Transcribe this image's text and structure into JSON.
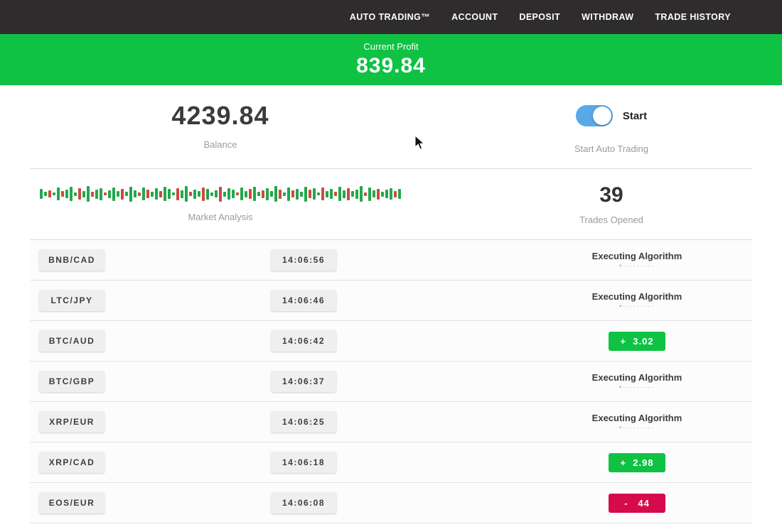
{
  "nav": {
    "items": [
      "AUTO TRADING™",
      "ACCOUNT",
      "DEPOSIT",
      "WITHDRAW",
      "TRADE HISTORY"
    ]
  },
  "banner": {
    "label": "Current Profit",
    "value": "839.84"
  },
  "account": {
    "balance": "4239.84",
    "balance_label": "Balance",
    "toggle_label": "Start",
    "toggle_caption": "Start Auto Trading",
    "toggle_state": "on"
  },
  "market": {
    "label": "Market Analysis",
    "trades_opened": "39",
    "trades_label": "Trades Opened",
    "bars": [
      [
        14,
        "g"
      ],
      [
        6,
        "g"
      ],
      [
        10,
        "r"
      ],
      [
        4,
        "g"
      ],
      [
        18,
        "g"
      ],
      [
        8,
        "r"
      ],
      [
        12,
        "g"
      ],
      [
        20,
        "g"
      ],
      [
        5,
        "g"
      ],
      [
        16,
        "r"
      ],
      [
        9,
        "g"
      ],
      [
        22,
        "g"
      ],
      [
        7,
        "r"
      ],
      [
        13,
        "g"
      ],
      [
        17,
        "g"
      ],
      [
        4,
        "r"
      ],
      [
        11,
        "g"
      ],
      [
        19,
        "g"
      ],
      [
        8,
        "g"
      ],
      [
        15,
        "r"
      ],
      [
        6,
        "g"
      ],
      [
        21,
        "g"
      ],
      [
        10,
        "g"
      ],
      [
        5,
        "r"
      ],
      [
        18,
        "g"
      ],
      [
        12,
        "r"
      ],
      [
        7,
        "g"
      ],
      [
        16,
        "g"
      ],
      [
        9,
        "r"
      ],
      [
        20,
        "g"
      ],
      [
        14,
        "g"
      ],
      [
        4,
        "g"
      ],
      [
        17,
        "r"
      ],
      [
        11,
        "g"
      ],
      [
        22,
        "g"
      ],
      [
        6,
        "r"
      ],
      [
        13,
        "g"
      ],
      [
        8,
        "g"
      ],
      [
        19,
        "r"
      ],
      [
        15,
        "g"
      ],
      [
        5,
        "g"
      ],
      [
        10,
        "g"
      ],
      [
        21,
        "r"
      ],
      [
        7,
        "g"
      ],
      [
        16,
        "g"
      ],
      [
        12,
        "g"
      ],
      [
        4,
        "r"
      ],
      [
        18,
        "g"
      ],
      [
        9,
        "g"
      ],
      [
        14,
        "r"
      ],
      [
        20,
        "g"
      ],
      [
        6,
        "g"
      ],
      [
        11,
        "r"
      ],
      [
        17,
        "g"
      ],
      [
        8,
        "g"
      ],
      [
        22,
        "g"
      ],
      [
        13,
        "r"
      ],
      [
        5,
        "g"
      ],
      [
        19,
        "g"
      ],
      [
        10,
        "r"
      ],
      [
        15,
        "g"
      ],
      [
        7,
        "g"
      ],
      [
        21,
        "g"
      ],
      [
        12,
        "r"
      ],
      [
        16,
        "g"
      ],
      [
        4,
        "g"
      ],
      [
        18,
        "r"
      ],
      [
        9,
        "g"
      ],
      [
        14,
        "g"
      ],
      [
        6,
        "r"
      ],
      [
        20,
        "g"
      ],
      [
        11,
        "g"
      ],
      [
        17,
        "r"
      ],
      [
        8,
        "g"
      ],
      [
        13,
        "g"
      ],
      [
        22,
        "g"
      ],
      [
        5,
        "r"
      ],
      [
        19,
        "g"
      ],
      [
        10,
        "g"
      ],
      [
        15,
        "r"
      ],
      [
        7,
        "g"
      ],
      [
        12,
        "g"
      ],
      [
        16,
        "g"
      ],
      [
        9,
        "r"
      ],
      [
        14,
        "g"
      ]
    ]
  },
  "executing_dots": "•·········",
  "trades": [
    {
      "pair": "BNB/CAD",
      "time": "14:06:56",
      "status_type": "executing",
      "status_label": "Executing Algorithm"
    },
    {
      "pair": "LTC/JPY",
      "time": "14:06:46",
      "status_type": "executing",
      "status_label": "Executing Algorithm"
    },
    {
      "pair": "BTC/AUD",
      "time": "14:06:42",
      "status_type": "profit",
      "status_label": "+  3.02"
    },
    {
      "pair": "BTC/GBP",
      "time": "14:06:37",
      "status_type": "executing",
      "status_label": "Executing Algorithm"
    },
    {
      "pair": "XRP/EUR",
      "time": "14:06:25",
      "status_type": "executing",
      "status_label": "Executing Algorithm"
    },
    {
      "pair": "XRP/CAD",
      "time": "14:06:18",
      "status_type": "profit",
      "status_label": "+  2.98"
    },
    {
      "pair": "EOS/EUR",
      "time": "14:06:08",
      "status_type": "loss",
      "status_label": "-   44"
    }
  ],
  "colors": {
    "accent_green": "#0fc244",
    "loss_red": "#d50b4d",
    "toggle_blue": "#57a9e8",
    "nav_bg": "#2e2c2c",
    "bar_green": "#22a84b",
    "bar_red": "#cc4a41"
  }
}
